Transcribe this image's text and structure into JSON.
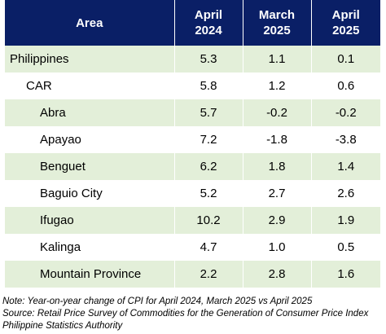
{
  "table": {
    "headers": [
      {
        "line1": "Area",
        "line2": ""
      },
      {
        "line1": "April",
        "line2": "2024"
      },
      {
        "line1": "March",
        "line2": "2025"
      },
      {
        "line1": "April",
        "line2": "2025"
      }
    ],
    "rows": [
      {
        "area": "Philippines",
        "level": 0,
        "values": [
          "5.3",
          "1.1",
          "0.1"
        ]
      },
      {
        "area": "CAR",
        "level": 1,
        "values": [
          "5.8",
          "1.2",
          "0.6"
        ]
      },
      {
        "area": "Abra",
        "level": 2,
        "values": [
          "5.7",
          "-0.2",
          "-0.2"
        ]
      },
      {
        "area": "Apayao",
        "level": 2,
        "values": [
          "7.2",
          "-1.8",
          "-3.8"
        ]
      },
      {
        "area": "Benguet",
        "level": 2,
        "values": [
          "6.2",
          "1.8",
          "1.4"
        ]
      },
      {
        "area": "Baguio City",
        "level": 2,
        "values": [
          "5.2",
          "2.7",
          "2.6"
        ]
      },
      {
        "area": "Ifugao",
        "level": 2,
        "values": [
          "10.2",
          "2.9",
          "1.9"
        ]
      },
      {
        "area": "Kalinga",
        "level": 2,
        "values": [
          "4.7",
          "1.0",
          "0.5"
        ]
      },
      {
        "area": "Mountain Province",
        "level": 2,
        "values": [
          "2.2",
          "2.8",
          "1.6"
        ]
      }
    ]
  },
  "notes": {
    "note": "Note: Year-on-year change of CPI for April 2024, March 2025 vs April 2025",
    "source": "Source: Retail Price Survey of Commodities for the Generation of Consumer Price Index",
    "authority": "Philippine Statistics Authority"
  },
  "colors": {
    "header_bg": "#0a1f66",
    "header_text": "#ffffff",
    "alt_row_bg": "#e3efd9",
    "plain_row_bg": "#ffffff"
  }
}
